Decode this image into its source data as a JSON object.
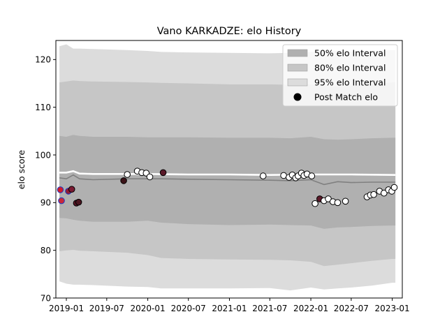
{
  "chart_data": {
    "type": "scatter",
    "title": "Vano KARKADZE: elo History",
    "xlabel": "",
    "ylabel": "elo score",
    "ylim": [
      70,
      124
    ],
    "yticks": [
      70,
      80,
      90,
      100,
      110,
      120
    ],
    "xlim": [
      "2018-11-15",
      "2023-02-15"
    ],
    "xticks": [
      {
        "date": "2019-01-01",
        "label": "2019-01"
      },
      {
        "date": "2019-07-01",
        "label": "2019-07"
      },
      {
        "date": "2020-01-01",
        "label": "2020-01"
      },
      {
        "date": "2020-07-01",
        "label": "2020-07"
      },
      {
        "date": "2021-01-01",
        "label": "2021-01"
      },
      {
        "date": "2021-07-01",
        "label": "2021-07"
      },
      {
        "date": "2022-01-01",
        "label": "2022-01"
      },
      {
        "date": "2022-07-01",
        "label": "2022-07"
      },
      {
        "date": "2023-01-01",
        "label": "2023-01"
      }
    ],
    "grid": false,
    "legend_position": "top-right",
    "legend": [
      {
        "label": "50% elo Interval",
        "kind": "patch",
        "color": "#b0b0b0"
      },
      {
        "label": "80% elo Interval",
        "kind": "patch",
        "color": "#c6c6c6"
      },
      {
        "label": "95% elo Interval",
        "kind": "patch",
        "color": "#dcdcdc"
      },
      {
        "label": "Post Match elo",
        "kind": "marker",
        "color": "#000000"
      }
    ],
    "bands": {
      "dates": [
        "2018-12-01",
        "2019-01-01",
        "2019-02-01",
        "2019-03-01",
        "2019-05-01",
        "2019-10-01",
        "2020-01-01",
        "2020-03-01",
        "2020-07-01",
        "2021-01-01",
        "2021-07-01",
        "2021-10-01",
        "2022-01-01",
        "2022-03-01",
        "2022-05-01",
        "2022-07-01",
        "2022-10-01",
        "2023-01-01",
        "2023-01-15"
      ],
      "center": [
        95.2,
        95.0,
        95.8,
        95.0,
        94.8,
        95.0,
        95.0,
        95.0,
        94.9,
        94.8,
        94.7,
        94.6,
        94.8,
        93.8,
        94.4,
        94.2,
        94.3,
        94.3,
        94.3
      ],
      "i50_lo": [
        86.8,
        86.7,
        86.4,
        86.2,
        86.0,
        86.0,
        86.2,
        85.8,
        85.5,
        85.3,
        85.4,
        85.3,
        85.2,
        84.5,
        84.8,
        84.9,
        85.1,
        85.2,
        85.2
      ],
      "i50_hi": [
        104.0,
        103.8,
        104.2,
        104.0,
        103.8,
        103.8,
        103.7,
        103.7,
        103.7,
        103.6,
        103.6,
        103.5,
        103.8,
        103.3,
        103.2,
        103.3,
        103.5,
        103.6,
        103.6
      ],
      "i80_lo": [
        79.8,
        80.0,
        80.1,
        79.9,
        79.8,
        79.5,
        79.0,
        78.4,
        78.2,
        78.1,
        78.0,
        77.9,
        77.6,
        76.7,
        77.0,
        77.3,
        77.8,
        78.2,
        78.2
      ],
      "i80_hi": [
        115.2,
        115.4,
        115.6,
        115.5,
        115.4,
        115.3,
        115.2,
        115.1,
        115.0,
        114.8,
        114.8,
        114.7,
        114.8,
        114.4,
        114.3,
        114.5,
        114.8,
        115.2,
        115.2
      ],
      "i95_lo": [
        73.5,
        73.0,
        72.8,
        72.8,
        72.7,
        72.4,
        72.3,
        72.0,
        72.0,
        72.0,
        72.1,
        71.6,
        72.2,
        71.8,
        72.0,
        72.2,
        72.6,
        73.2,
        73.2
      ],
      "i95_hi": [
        122.8,
        123.2,
        122.3,
        122.3,
        122.2,
        122.0,
        121.8,
        121.6,
        121.5,
        121.4,
        121.3,
        121.4,
        121.6,
        121.8,
        121.8,
        121.6,
        121.7,
        122.0,
        122.0
      ]
    },
    "white_line": {
      "dates": [
        "2018-12-01",
        "2019-01-01",
        "2019-02-01",
        "2019-03-01",
        "2019-05-01",
        "2019-10-01",
        "2020-01-01",
        "2020-07-01",
        "2021-01-01",
        "2021-07-01",
        "2022-01-01",
        "2022-07-01",
        "2023-01-15"
      ],
      "values": [
        96.3,
        96.3,
        96.6,
        96.1,
        96.0,
        96.0,
        96.0,
        95.9,
        95.9,
        95.8,
        95.9,
        95.9,
        95.8
      ]
    },
    "points": {
      "dates": [
        "2018-12-05",
        "2018-12-10",
        "2019-01-10",
        "2019-01-25",
        "2019-02-15",
        "2019-02-25",
        "2019-09-15",
        "2019-10-01",
        "2019-11-15",
        "2019-12-05",
        "2019-12-25",
        "2020-01-10",
        "2020-03-10",
        "2021-06-01",
        "2021-09-01",
        "2021-09-25",
        "2021-10-10",
        "2021-10-25",
        "2021-11-05",
        "2021-11-20",
        "2021-12-01",
        "2021-12-15",
        "2022-01-05",
        "2022-01-20",
        "2022-02-10",
        "2022-03-01",
        "2022-03-20",
        "2022-04-10",
        "2022-05-01",
        "2022-06-05",
        "2022-09-10",
        "2022-09-25",
        "2022-10-10",
        "2022-11-05",
        "2022-11-25",
        "2022-12-15",
        "2022-12-30",
        "2023-01-10"
      ],
      "values": [
        92.7,
        90.4,
        92.4,
        92.8,
        89.9,
        90.1,
        94.6,
        95.9,
        96.6,
        96.3,
        96.2,
        95.4,
        96.3,
        95.6,
        95.7,
        95.3,
        95.8,
        95.2,
        95.6,
        96.2,
        95.7,
        96.0,
        95.6,
        89.8,
        90.8,
        90.4,
        90.8,
        90.2,
        90.0,
        90.3,
        91.2,
        91.6,
        91.7,
        92.4,
        92.0,
        92.7,
        92.4,
        93.2
      ],
      "fills": [
        "#d11a2a",
        "#c9283a",
        "#8e1b36",
        "#7a1a32",
        "#5a1626",
        "#4a1520",
        "#3c1318",
        "#ffffff",
        "#ffffff",
        "#ffffff",
        "#ffffff",
        "#ffffff",
        "#5a1828",
        "#ffffff",
        "#ffffff",
        "#ffffff",
        "#ffffff",
        "#ffffff",
        "#ffffff",
        "#ffffff",
        "#ffffff",
        "#ffffff",
        "#ffffff",
        "#ffffff",
        "#5c1a2a",
        "#ffffff",
        "#ffffff",
        "#ffffff",
        "#ffffff",
        "#ffffff",
        "#ffffff",
        "#ffffff",
        "#ffffff",
        "#ffffff",
        "#ffffff",
        "#ffffff",
        "#ffffff",
        "#ffffff"
      ],
      "edges": [
        "#1a3cc8",
        "#1a3cc8",
        "#1a3cc8",
        "#000000",
        "#000000",
        "#000000",
        "#000000",
        "#000000",
        "#000000",
        "#000000",
        "#000000",
        "#000000",
        "#000000",
        "#000000",
        "#000000",
        "#000000",
        "#000000",
        "#000000",
        "#000000",
        "#000000",
        "#000000",
        "#000000",
        "#000000",
        "#000000",
        "#000000",
        "#000000",
        "#000000",
        "#000000",
        "#000000",
        "#000000",
        "#000000",
        "#000000",
        "#000000",
        "#000000",
        "#000000",
        "#000000",
        "#000000",
        "#000000"
      ]
    },
    "colors": {
      "band50": "#b0b0b0",
      "band80": "#c6c6c6",
      "band95": "#dcdcdc",
      "center_line": "#808080",
      "white_line": "#ffffff"
    }
  }
}
